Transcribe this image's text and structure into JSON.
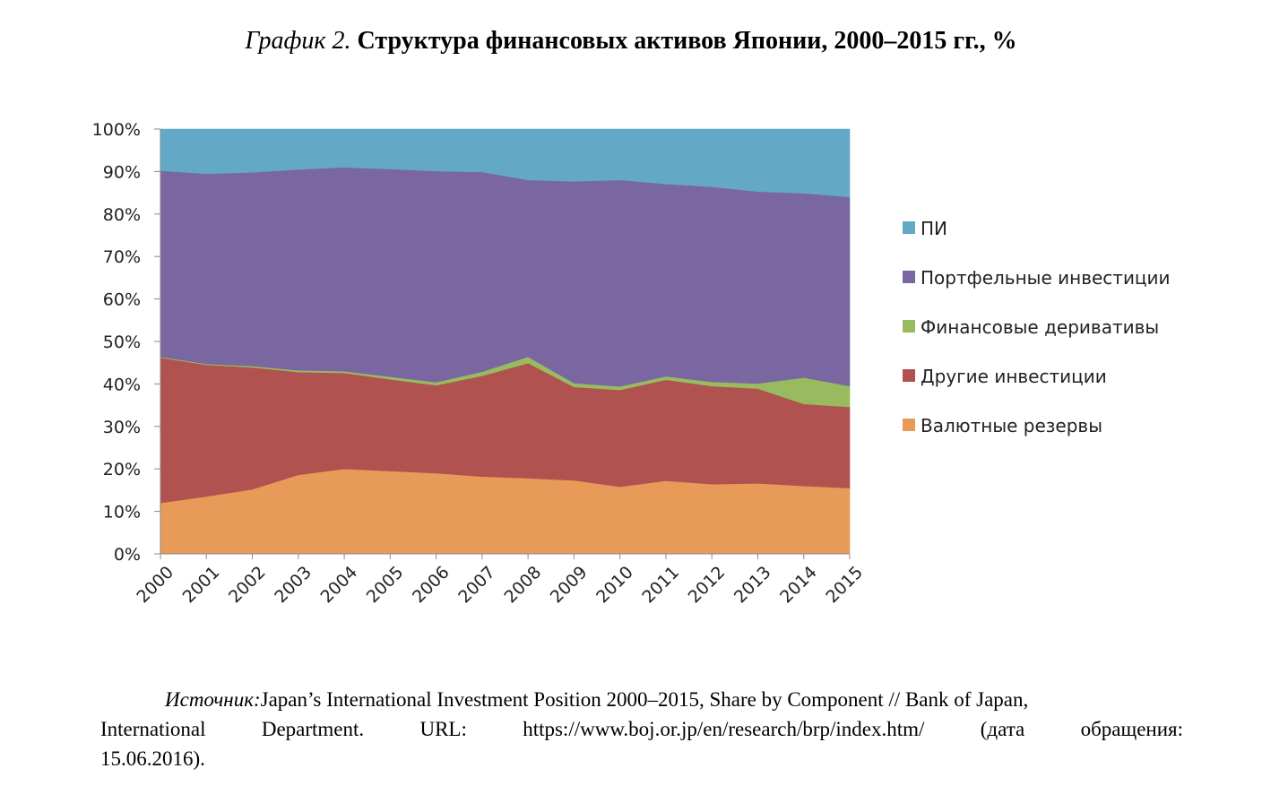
{
  "title": {
    "label": "График 2.",
    "text": "Структура финансовых активов Японии, 2000–2015 гг., %"
  },
  "chart_data": {
    "type": "area",
    "stacked": true,
    "normalized_percent": true,
    "categories": [
      "2000",
      "2001",
      "2002",
      "2003",
      "2004",
      "2005",
      "2006",
      "2007",
      "2008",
      "2009",
      "2010",
      "2011",
      "2012",
      "2013",
      "2014",
      "2015"
    ],
    "y_ticks": [
      "0%",
      "10%",
      "20%",
      "30%",
      "40%",
      "50%",
      "60%",
      "70%",
      "80%",
      "90%",
      "100%"
    ],
    "ylim": [
      0,
      100
    ],
    "legend_position": "right",
    "series": [
      {
        "name": "Валютные резервы",
        "color": "#E89A58",
        "values": [
          12.0,
          13.5,
          15.2,
          18.6,
          20.0,
          19.5,
          19.0,
          18.2,
          17.8,
          17.3,
          15.8,
          17.2,
          16.4,
          16.6,
          16.0,
          15.5
        ]
      },
      {
        "name": "Другие инвестиции",
        "color": "#B0524F",
        "values": [
          34.2,
          31.0,
          28.7,
          24.2,
          22.6,
          21.6,
          20.7,
          23.7,
          27.1,
          22.0,
          22.8,
          23.8,
          23.1,
          22.3,
          19.3,
          19.1
        ]
      },
      {
        "name": "Финансовые деривативы",
        "color": "#98BB60",
        "values": [
          0.2,
          0.2,
          0.3,
          0.4,
          0.4,
          0.6,
          0.7,
          1.0,
          1.5,
          0.9,
          0.8,
          0.8,
          1.0,
          1.2,
          6.2,
          4.9
        ]
      },
      {
        "name": "Портфельные инвестиции",
        "color": "#7A66A0",
        "values": [
          43.8,
          44.8,
          45.6,
          47.3,
          48.0,
          48.9,
          49.7,
          47.0,
          41.6,
          47.5,
          48.6,
          45.3,
          45.9,
          45.2,
          43.4,
          44.5
        ]
      },
      {
        "name": "ПИ",
        "color": "#63A8C7",
        "values": [
          9.8,
          10.5,
          10.2,
          9.5,
          9.0,
          9.4,
          9.9,
          10.1,
          12.0,
          12.3,
          12.0,
          12.9,
          13.6,
          14.7,
          15.1,
          16.0
        ]
      }
    ],
    "legend_order": [
      "ПИ",
      "Портфельные инвестиции",
      "Финансовые деривативы",
      "Другие инвестиции",
      "Валютные резервы"
    ]
  },
  "source": {
    "label": "Источник:",
    "text": "Japan’s International Investment Position 2000–2015, Share by Component // Bank of Japan,",
    "line2": "International Department. URL: https://www.boj.or.jp/en/research/brp/index.htm/ (дата обращения:",
    "line3": "15.06.2016)."
  }
}
